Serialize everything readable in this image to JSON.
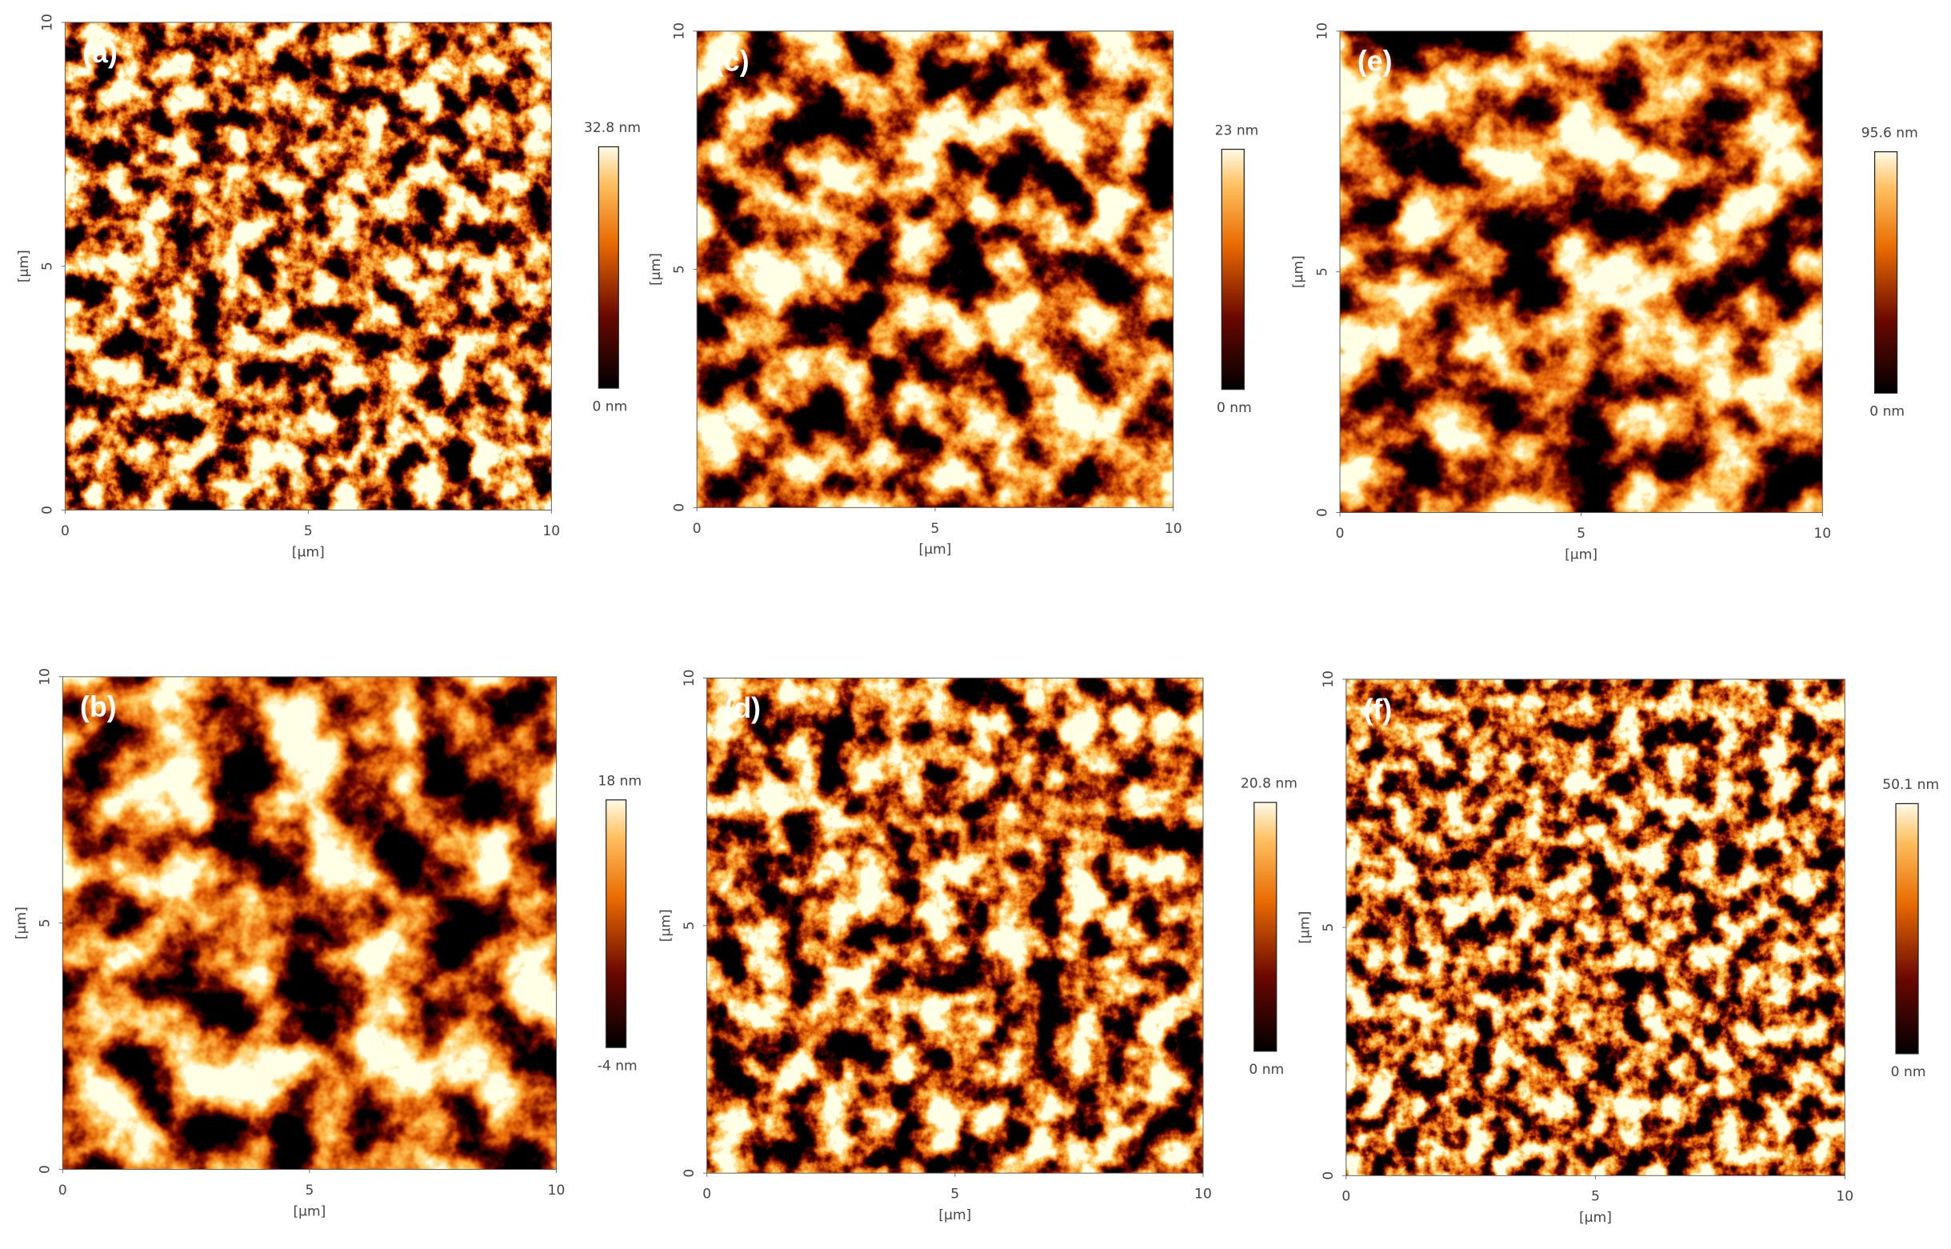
{
  "panels": [
    {
      "label": "(a)",
      "x_label": "[µm]",
      "y_label": "[µm]",
      "xticks": [
        "0",
        "5",
        "10"
      ],
      "yticks": [
        "0",
        "5",
        "10"
      ],
      "colorbar": {
        "max": "32.8 nm",
        "min": "0 nm"
      }
    },
    {
      "label": "(c)",
      "x_label": "[µm]",
      "y_label": "[µm]",
      "xticks": [
        "0",
        "5",
        "10"
      ],
      "yticks": [
        "0",
        "5",
        "10"
      ],
      "colorbar": {
        "max": "23 nm",
        "min": "0 nm"
      }
    },
    {
      "label": "(e)",
      "x_label": "[µm]",
      "y_label": "[µm]",
      "xticks": [
        "0",
        "5",
        "10"
      ],
      "yticks": [
        "0",
        "5",
        "10"
      ],
      "colorbar": {
        "max": "95.6 nm",
        "min": "0 nm"
      }
    },
    {
      "label": "(b)",
      "x_label": "[µm]",
      "y_label": "[µm]",
      "xticks": [
        "0",
        "5",
        "10"
      ],
      "yticks": [
        "0",
        "5",
        "10"
      ],
      "colorbar": {
        "max": "18 nm",
        "min": "-4 nm"
      }
    },
    {
      "label": "(d)",
      "x_label": "[µm]",
      "y_label": "[µm]",
      "xticks": [
        "0",
        "5",
        "10"
      ],
      "yticks": [
        "0",
        "5",
        "10"
      ],
      "colorbar": {
        "max": "20.8 nm",
        "min": "0 nm"
      }
    },
    {
      "label": "(f)",
      "x_label": "[µm]",
      "y_label": "[µm]",
      "xticks": [
        "0",
        "5",
        "10"
      ],
      "yticks": [
        "0",
        "5",
        "10"
      ],
      "colorbar": {
        "max": "50.1 nm",
        "min": "0 nm"
      }
    }
  ]
}
